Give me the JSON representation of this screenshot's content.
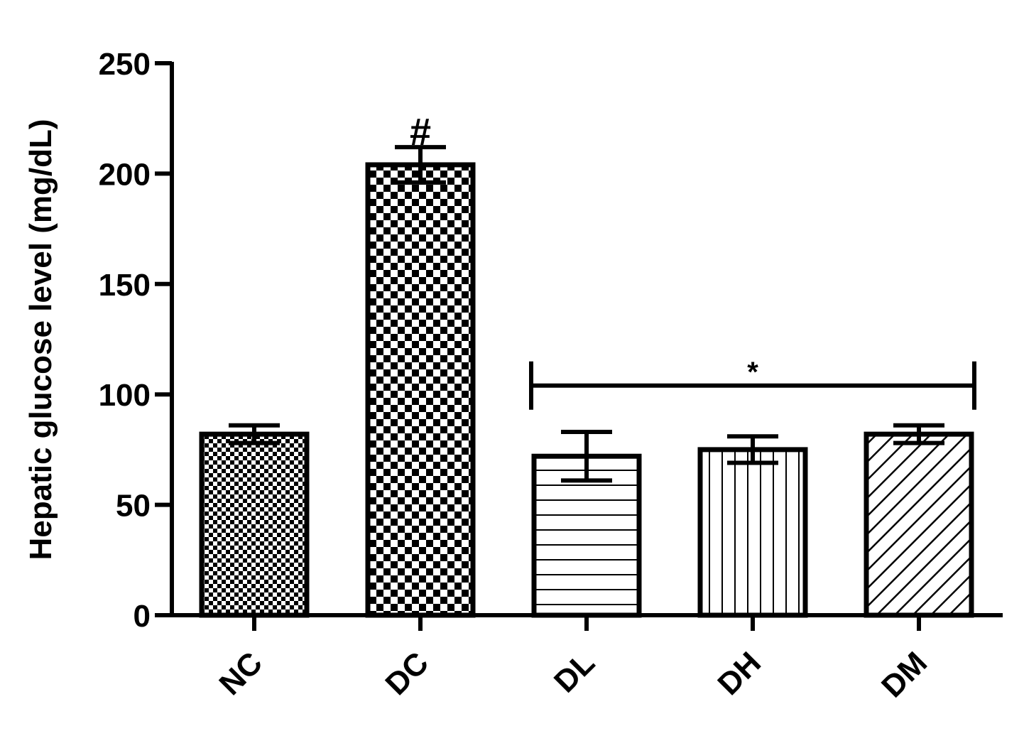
{
  "chart_data": {
    "type": "bar",
    "title": "",
    "xlabel": "",
    "ylabel": "Hepatic glucose level (mg/dL)",
    "ylim": [
      0,
      250
    ],
    "yticks": [
      0,
      50,
      100,
      150,
      200,
      250
    ],
    "ytick_labels": [
      "0",
      "50",
      "100",
      "150",
      "200",
      "250"
    ],
    "categories": [
      "NC",
      "DC",
      "DL",
      "DH",
      "DM"
    ],
    "values": [
      82,
      204,
      72,
      75,
      82
    ],
    "errors": [
      4,
      8,
      11,
      6,
      4
    ],
    "patterns": [
      "fine-checker",
      "coarse-checker",
      "horizontal-lines",
      "vertical-lines",
      "diagonal-lines"
    ],
    "grid": false,
    "legend": "none",
    "annotations": [
      {
        "text": "#",
        "category": "DC",
        "y": 222
      },
      {
        "text": "*",
        "from": "DL",
        "to": "DM",
        "y": 104
      }
    ]
  }
}
